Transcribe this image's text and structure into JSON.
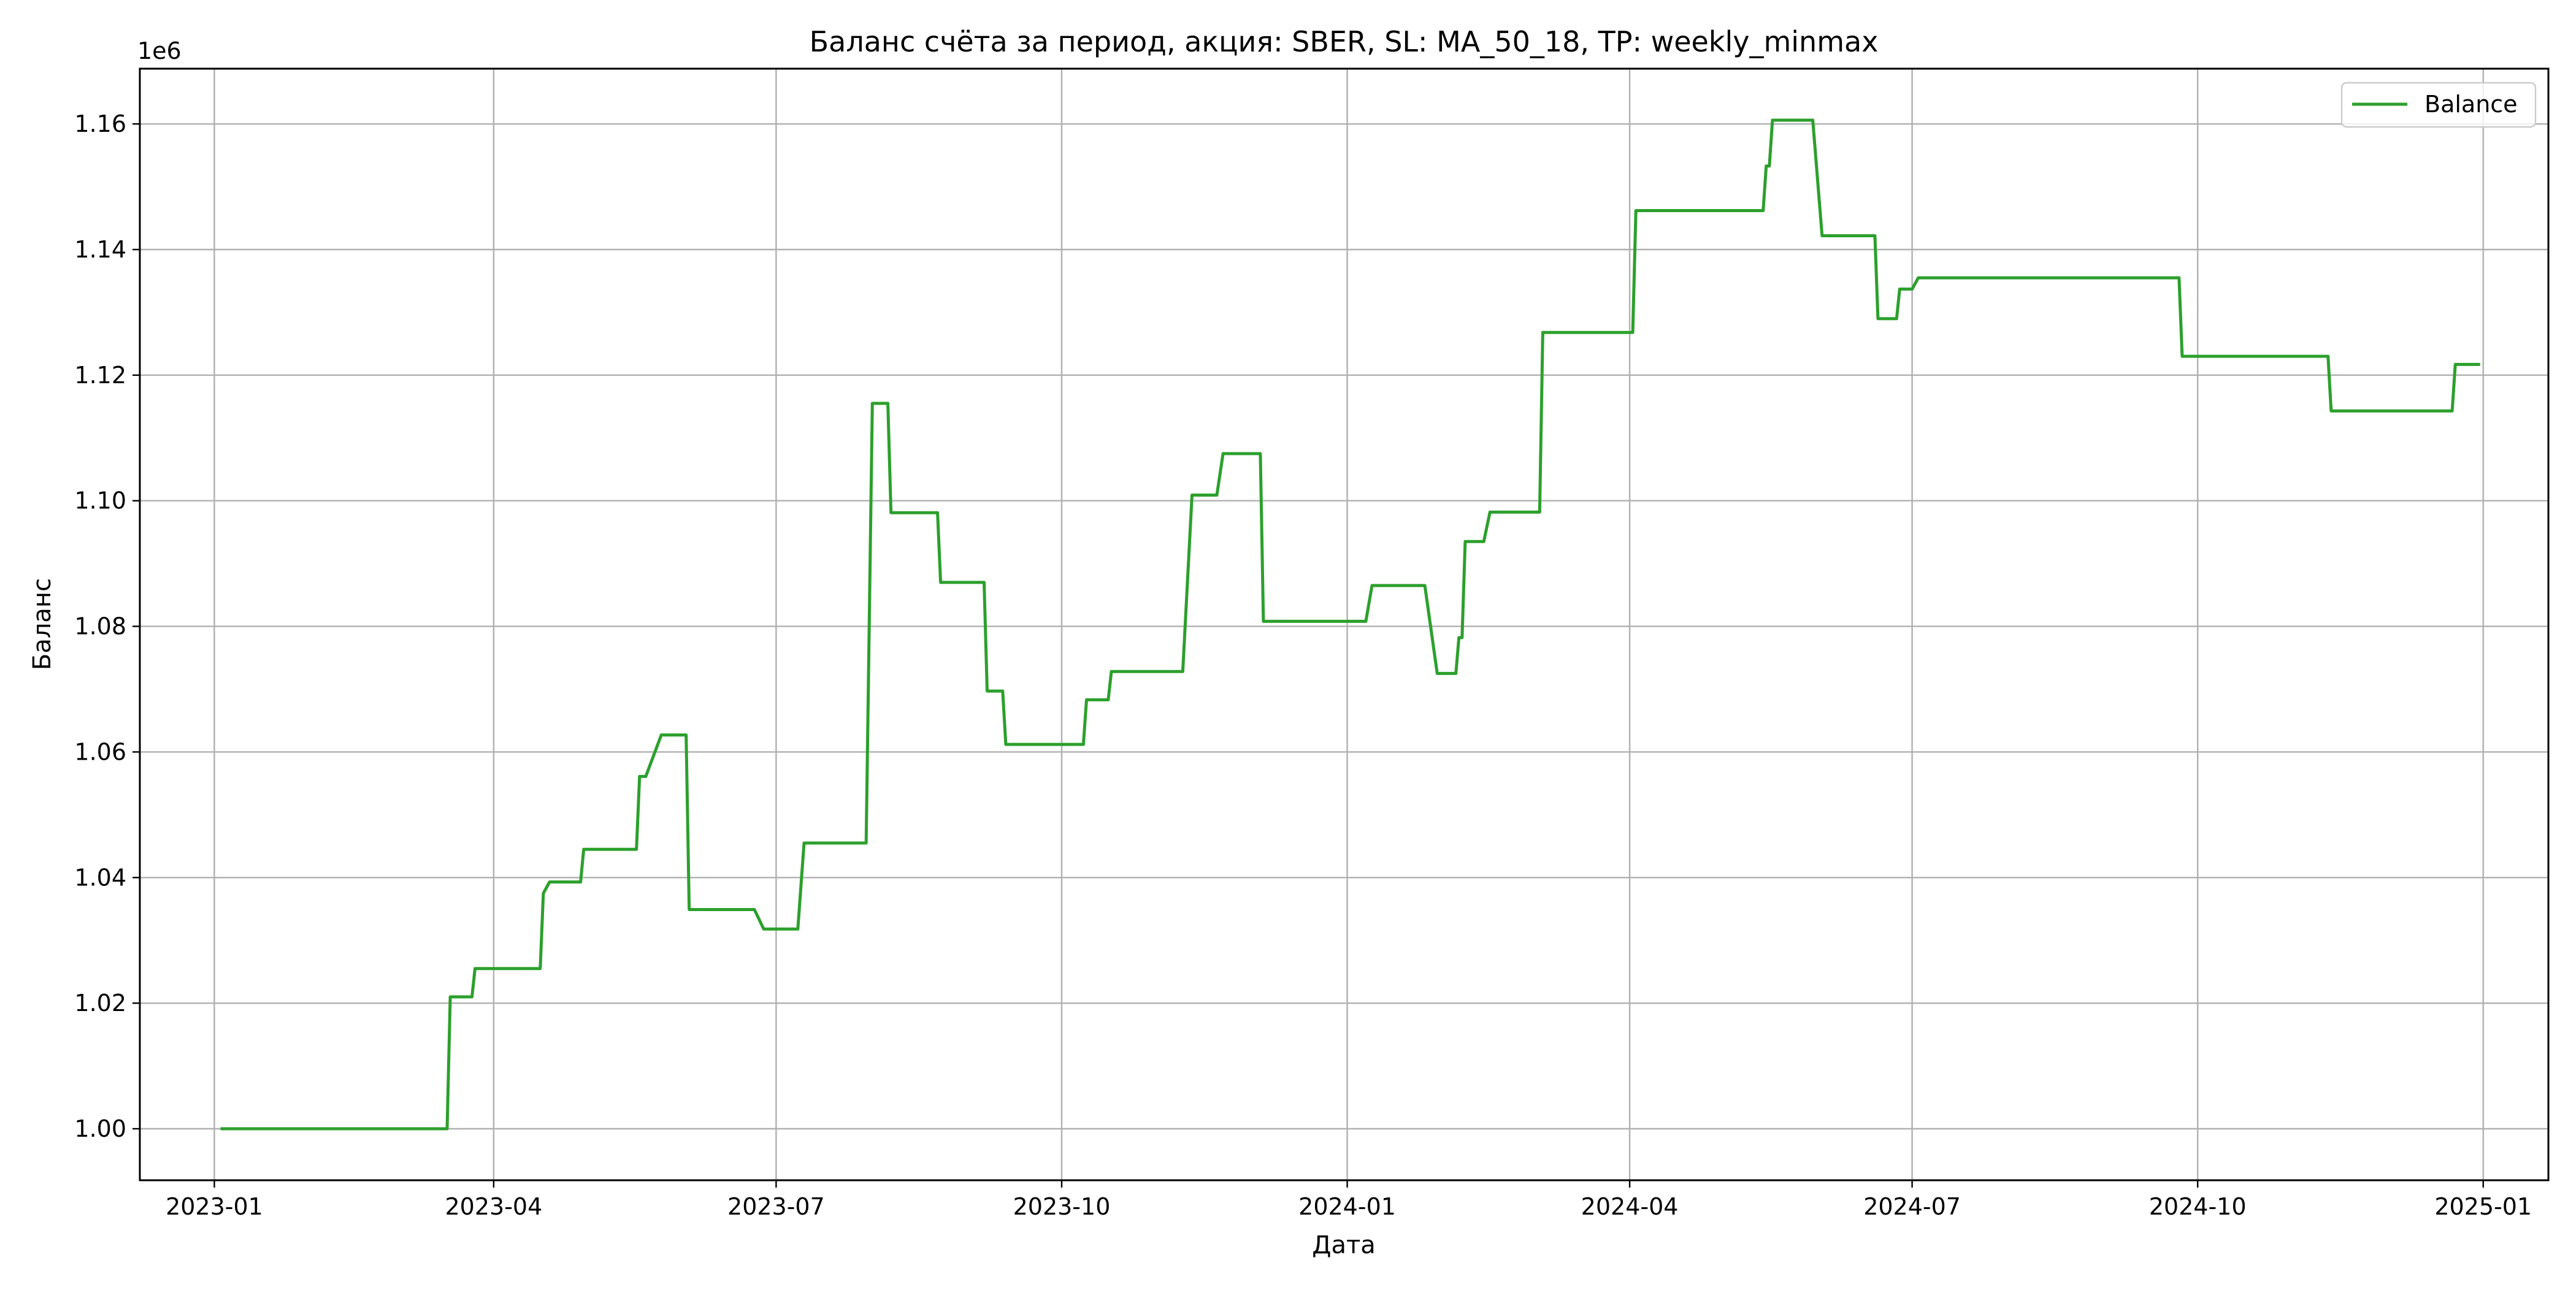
{
  "chart_data": {
    "type": "line",
    "title": "Баланс счёта за период, акция: SBER, SL: MA_50_18, TP: weekly_minmax",
    "xlabel": "Дата",
    "ylabel": "Баланс",
    "y_offset_label": "1e6",
    "ylim": [
      0.9918,
      1.1688
    ],
    "xlim": [
      "2022-12-08",
      "2025-01-22"
    ],
    "grid": true,
    "legend_position": "upper right",
    "x_ticks": [
      "2023-01-01",
      "2023-04-01",
      "2023-07-01",
      "2023-10-01",
      "2024-01-01",
      "2024-04-01",
      "2024-07-01",
      "2024-10-01",
      "2025-01-01"
    ],
    "x_tick_labels": [
      "2023-01",
      "2023-04",
      "2023-07",
      "2023-10",
      "2024-01",
      "2024-04",
      "2024-07",
      "2024-10",
      "2025-01"
    ],
    "y_ticks": [
      1.0,
      1.02,
      1.04,
      1.06,
      1.08,
      1.1,
      1.12,
      1.14,
      1.16
    ],
    "y_tick_labels": [
      "1.00",
      "1.02",
      "1.04",
      "1.06",
      "1.08",
      "1.10",
      "1.12",
      "1.14",
      "1.16"
    ],
    "series": [
      {
        "name": "Balance",
        "color": "#2ca02c",
        "points": [
          [
            "2023-01-03",
            1.0
          ],
          [
            "2023-03-17",
            1.0
          ],
          [
            "2023-03-18",
            1.021
          ],
          [
            "2023-03-25",
            1.021
          ],
          [
            "2023-03-26",
            1.0255
          ],
          [
            "2023-04-16",
            1.0255
          ],
          [
            "2023-04-17",
            1.0375
          ],
          [
            "2023-04-19",
            1.0393
          ],
          [
            "2023-04-29",
            1.0393
          ],
          [
            "2023-04-30",
            1.0445
          ],
          [
            "2023-05-17",
            1.0445
          ],
          [
            "2023-05-18",
            1.0561
          ],
          [
            "2023-05-20",
            1.0561
          ],
          [
            "2023-05-25",
            1.0627
          ],
          [
            "2023-06-02",
            1.0627
          ],
          [
            "2023-06-03",
            1.0349
          ],
          [
            "2023-06-24",
            1.0349
          ],
          [
            "2023-06-27",
            1.0318
          ],
          [
            "2023-07-08",
            1.0318
          ],
          [
            "2023-07-10",
            1.0455
          ],
          [
            "2023-07-30",
            1.0455
          ],
          [
            "2023-08-01",
            1.1155
          ],
          [
            "2023-08-06",
            1.1155
          ],
          [
            "2023-08-07",
            1.0981
          ],
          [
            "2023-08-22",
            1.0981
          ],
          [
            "2023-08-23",
            1.087
          ],
          [
            "2023-09-06",
            1.087
          ],
          [
            "2023-09-07",
            1.0697
          ],
          [
            "2023-09-12",
            1.0697
          ],
          [
            "2023-09-13",
            1.0612
          ],
          [
            "2023-10-08",
            1.0612
          ],
          [
            "2023-10-09",
            1.0683
          ],
          [
            "2023-10-16",
            1.0683
          ],
          [
            "2023-10-17",
            1.0728
          ],
          [
            "2023-11-09",
            1.0728
          ],
          [
            "2023-11-12",
            1.1009
          ],
          [
            "2023-11-20",
            1.1009
          ],
          [
            "2023-11-22",
            1.1075
          ],
          [
            "2023-12-04",
            1.1075
          ],
          [
            "2023-12-05",
            1.0808
          ],
          [
            "2024-01-07",
            1.0808
          ],
          [
            "2024-01-09",
            1.0865
          ],
          [
            "2024-01-26",
            1.0865
          ],
          [
            "2024-01-30",
            1.0725
          ],
          [
            "2024-02-05",
            1.0725
          ],
          [
            "2024-02-06",
            1.0782
          ],
          [
            "2024-02-07",
            1.0782
          ],
          [
            "2024-02-08",
            1.0935
          ],
          [
            "2024-02-14",
            1.0935
          ],
          [
            "2024-02-16",
            1.0982
          ],
          [
            "2024-03-03",
            1.0982
          ],
          [
            "2024-03-04",
            1.1268
          ],
          [
            "2024-04-02",
            1.1268
          ],
          [
            "2024-04-03",
            1.1462
          ],
          [
            "2024-05-14",
            1.1462
          ],
          [
            "2024-05-15",
            1.1533
          ],
          [
            "2024-05-16",
            1.1533
          ],
          [
            "2024-05-17",
            1.1606
          ],
          [
            "2024-05-30",
            1.1606
          ],
          [
            "2024-06-02",
            1.1422
          ],
          [
            "2024-06-19",
            1.1422
          ],
          [
            "2024-06-20",
            1.129
          ],
          [
            "2024-06-26",
            1.129
          ],
          [
            "2024-06-27",
            1.1337
          ],
          [
            "2024-07-01",
            1.1337
          ],
          [
            "2024-07-03",
            1.1355
          ],
          [
            "2024-09-25",
            1.1355
          ],
          [
            "2024-09-26",
            1.123
          ],
          [
            "2024-11-12",
            1.123
          ],
          [
            "2024-11-13",
            1.1143
          ],
          [
            "2024-12-22",
            1.1143
          ],
          [
            "2024-12-23",
            1.1217
          ],
          [
            "2024-12-31",
            1.1217
          ]
        ]
      }
    ]
  }
}
